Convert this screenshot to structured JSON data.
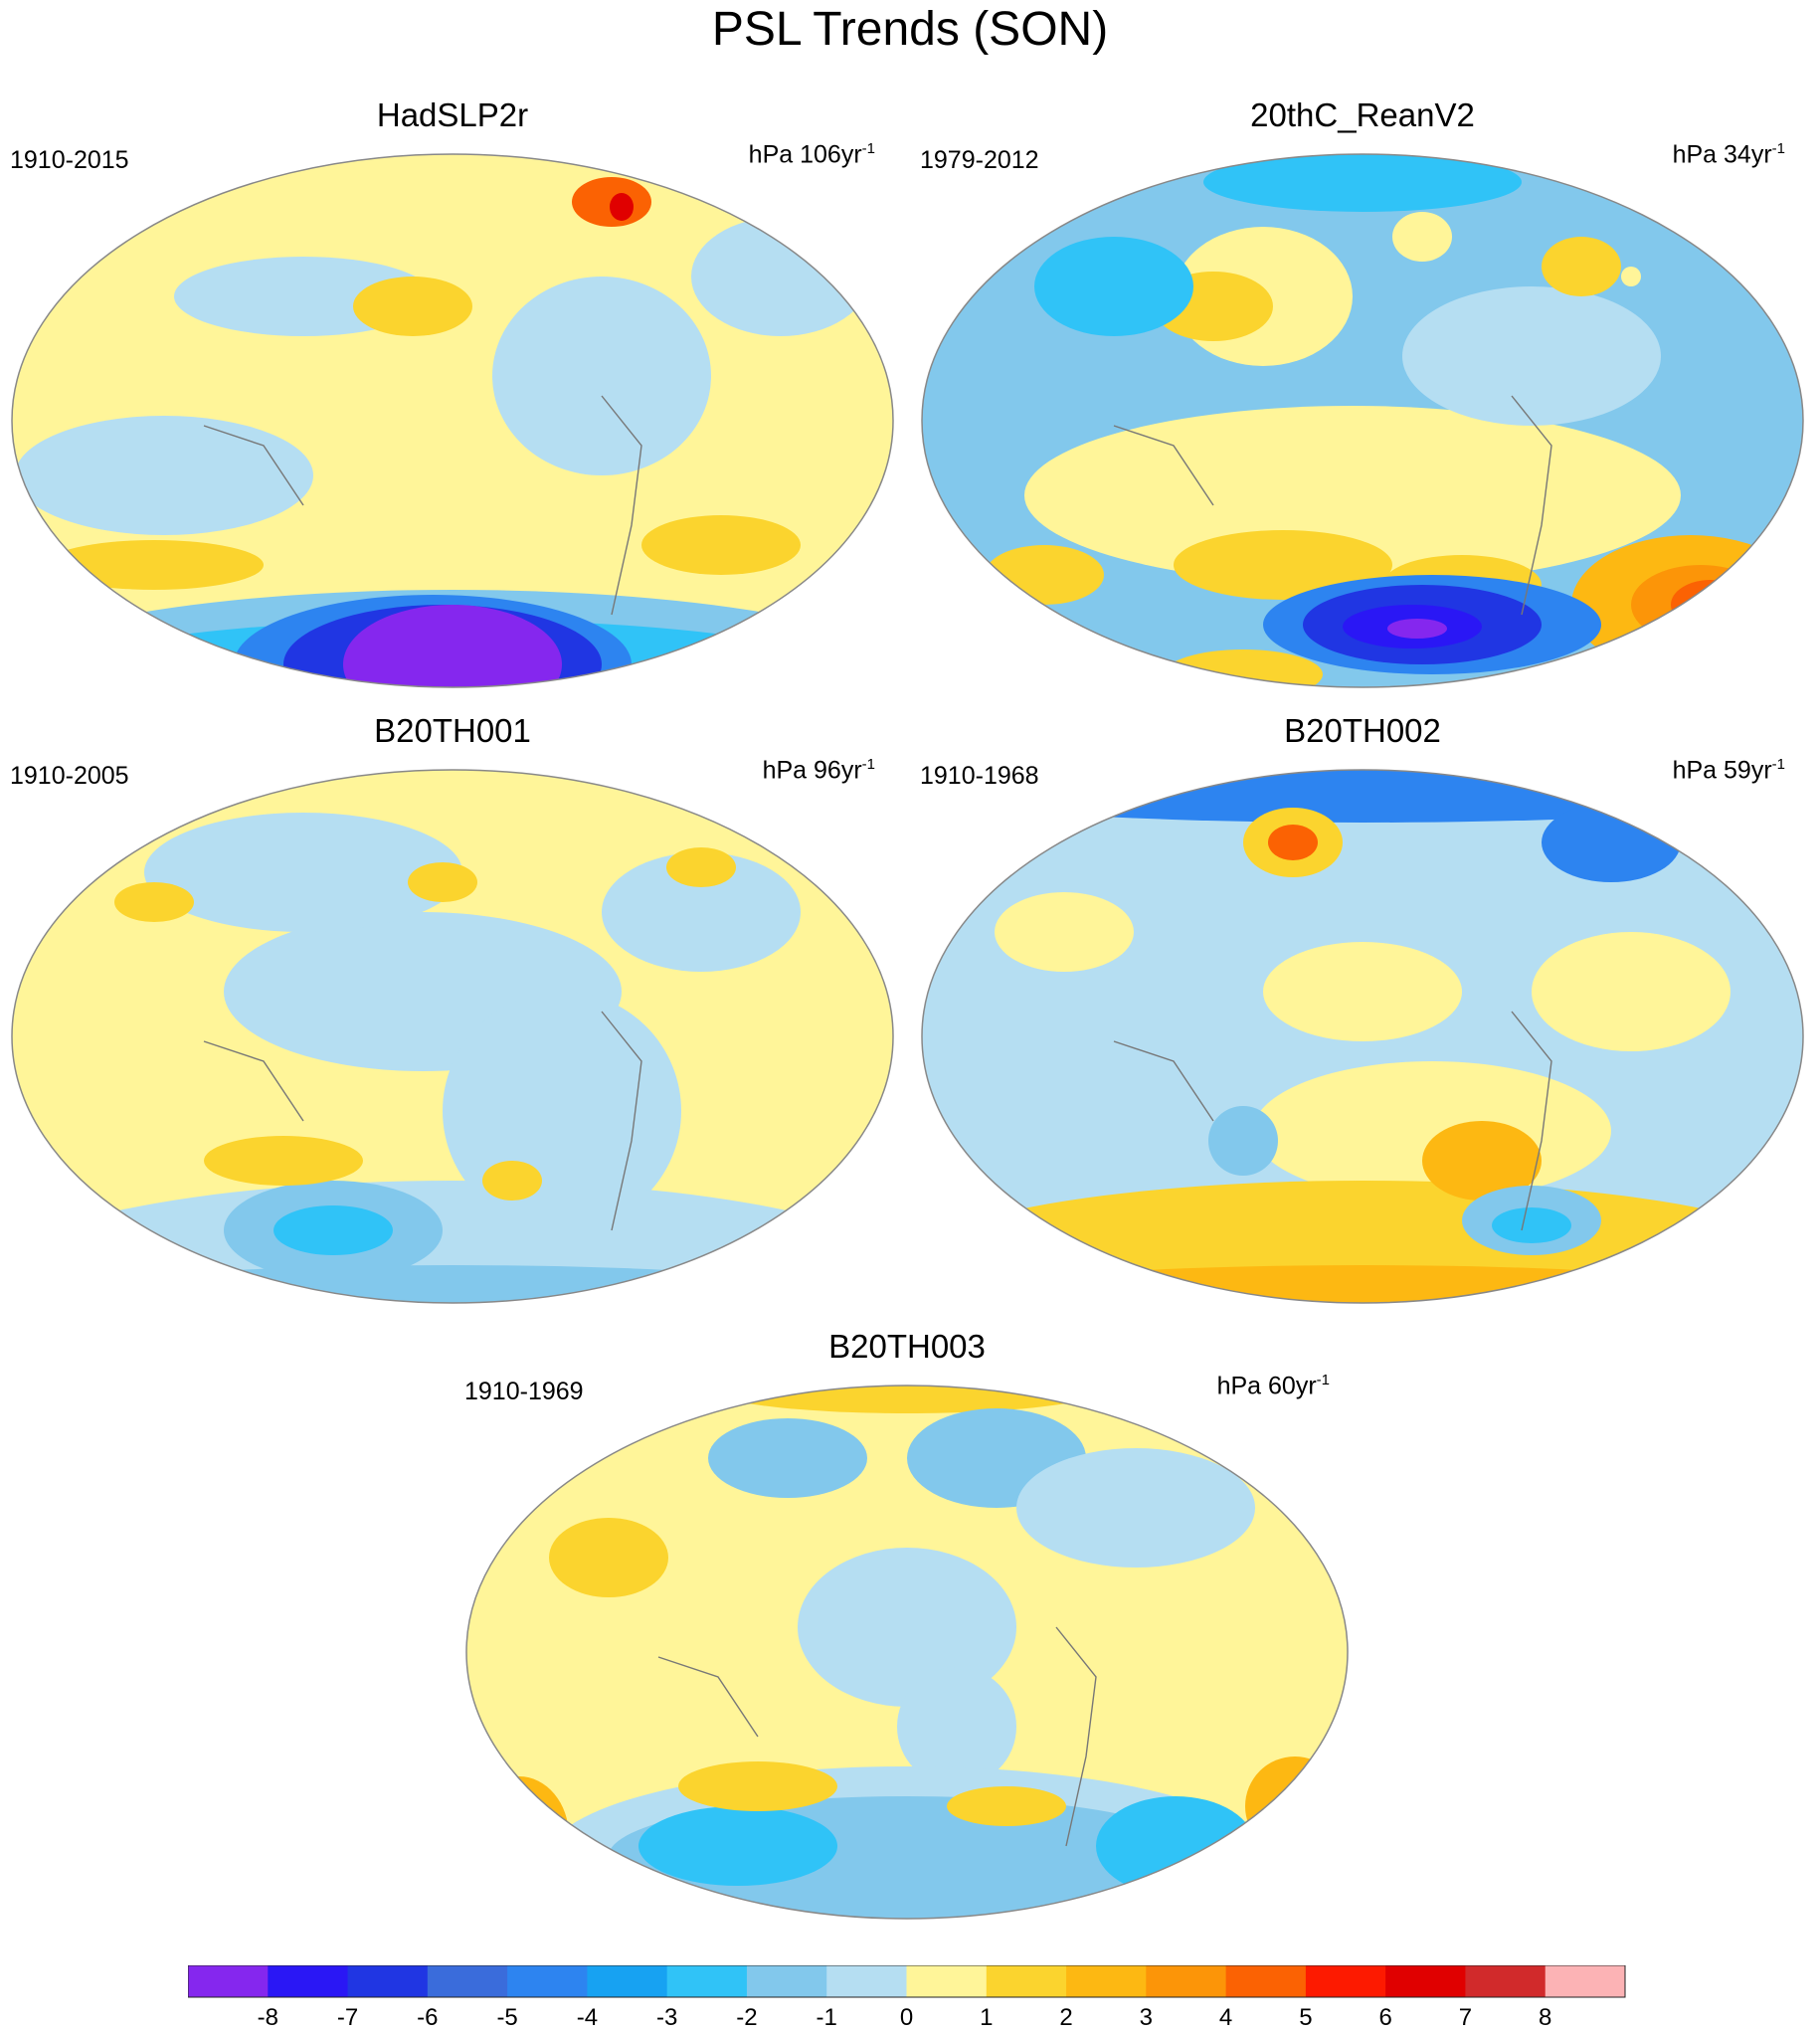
{
  "title": "PSL Trends (SON)",
  "unit_prefix": "hPa",
  "unit_suffix": "yr",
  "unit_exponent": "-1",
  "panels": [
    {
      "name": "HadSLP2r",
      "period": "1910-2015",
      "scale": "106"
    },
    {
      "name": "20thC_ReanV2",
      "period": "1979-2012",
      "scale": "34"
    },
    {
      "name": "B20TH001",
      "period": "1910-2005",
      "scale": "96"
    },
    {
      "name": "B20TH002",
      "period": "1910-1968",
      "scale": "59"
    },
    {
      "name": "B20TH003",
      "period": "1910-1969",
      "scale": "60"
    }
  ],
  "colorbar": {
    "colors": [
      "#8527ee",
      "#2a17f5",
      "#2036e3",
      "#3a6cdb",
      "#2d84f0",
      "#17a2f2",
      "#30c3f7",
      "#82c8ec",
      "#b5def2",
      "#fff599",
      "#fbd42e",
      "#fdb812",
      "#fc9508",
      "#fb6203",
      "#fd1a00",
      "#e00000",
      "#d12a2b",
      "#fcb3b5"
    ],
    "labels": [
      "-8",
      "-7",
      "-6",
      "-5",
      "-4",
      "-3",
      "-2",
      "-1",
      "0",
      "1",
      "2",
      "3",
      "4",
      "5",
      "6",
      "7",
      "8"
    ]
  }
}
